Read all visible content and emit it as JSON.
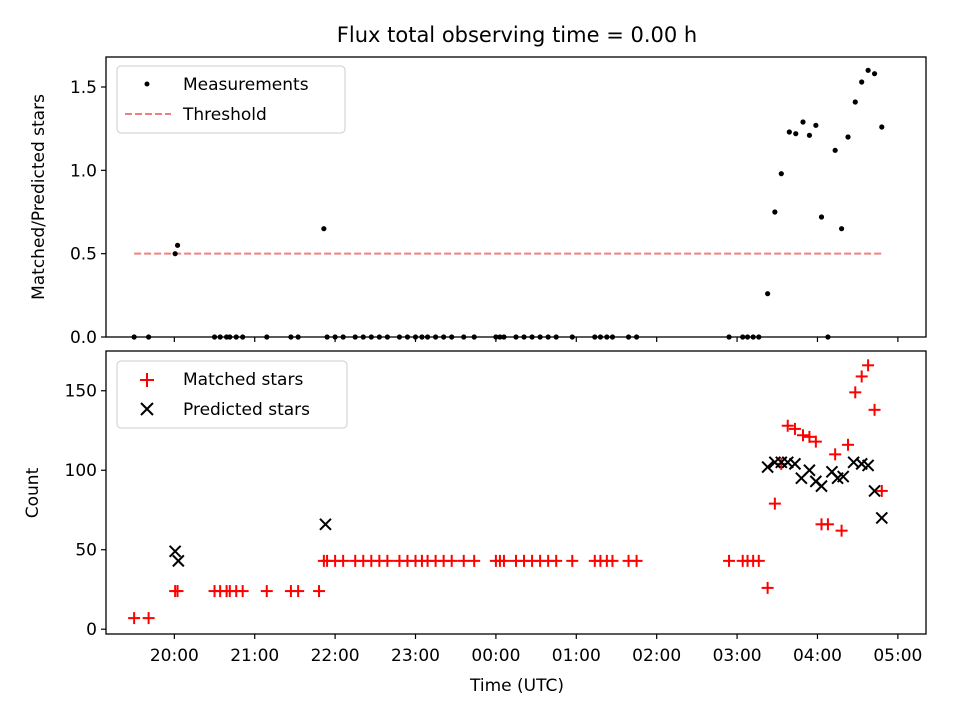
{
  "figure": {
    "title": "Flux total observing time = 0.00 h",
    "xlabel": "Time (UTC)"
  },
  "colors": {
    "measurement": "#000000",
    "threshold": "#f08080",
    "matched": "#ff0000",
    "predicted": "#000000"
  },
  "chart_data": [
    {
      "type": "scatter",
      "name": "ratio-panel",
      "ylabel": "Matched/Predicted stars",
      "xlim": [
        -0.85,
        9.35
      ],
      "ylim": [
        0,
        1.68
      ],
      "yticks": [
        0.0,
        0.5,
        1.0,
        1.5
      ],
      "ytick_labels": [
        "0.0",
        "0.5",
        "1.0",
        "1.5"
      ],
      "legend": {
        "placement": "top-left",
        "entries": [
          "Measurements",
          "Threshold"
        ]
      },
      "threshold": {
        "label": "Threshold",
        "value": 0.5,
        "x": [
          -0.5,
          8.8
        ]
      },
      "series": [
        {
          "name": "Measurements",
          "x": [
            -0.5,
            -0.32,
            0.01,
            0.04,
            0.5,
            0.57,
            0.65,
            0.69,
            0.77,
            0.85,
            1.15,
            1.45,
            1.54,
            1.86,
            1.9,
            2.0,
            2.1,
            2.25,
            2.35,
            2.45,
            2.55,
            2.65,
            2.8,
            2.9,
            3.0,
            3.08,
            3.15,
            3.25,
            3.35,
            3.45,
            3.6,
            3.73,
            4.0,
            4.05,
            4.1,
            4.25,
            4.35,
            4.45,
            4.55,
            4.65,
            4.75,
            4.95,
            5.23,
            5.3,
            5.38,
            5.45,
            5.65,
            5.75,
            6.9,
            7.07,
            7.13,
            7.2,
            7.27,
            7.38,
            7.47,
            7.55,
            7.65,
            7.73,
            7.82,
            7.9,
            7.98,
            8.05,
            8.13,
            8.22,
            8.3,
            8.38,
            8.47,
            8.55,
            8.63,
            8.71,
            8.8
          ],
          "y": [
            0,
            0,
            0.5,
            0.55,
            0,
            0,
            0,
            0,
            0,
            0,
            0,
            0,
            0,
            0.65,
            0,
            0,
            0,
            0,
            0,
            0,
            0,
            0,
            0,
            0,
            0,
            0,
            0,
            0,
            0,
            0,
            0,
            0,
            0,
            0,
            0,
            0,
            0,
            0,
            0,
            0,
            0,
            0,
            0,
            0,
            0,
            0,
            0,
            0,
            0,
            0,
            0,
            0,
            0,
            0.26,
            0.75,
            0.98,
            1.23,
            1.22,
            1.29,
            1.21,
            1.27,
            0.72,
            0,
            1.12,
            0.65,
            1.2,
            1.41,
            1.53,
            1.6,
            1.58,
            1.26
          ]
        }
      ]
    },
    {
      "type": "scatter",
      "name": "count-panel",
      "ylabel": "Count",
      "xlim": [
        -0.85,
        9.35
      ],
      "ylim": [
        -3,
        175
      ],
      "yticks": [
        0,
        50,
        100,
        150
      ],
      "ytick_labels": [
        "0",
        "50",
        "100",
        "150"
      ],
      "xticks": [
        0,
        1,
        2,
        3,
        4,
        5,
        6,
        7,
        8,
        9
      ],
      "xtick_labels": [
        "20:00",
        "21:00",
        "22:00",
        "23:00",
        "00:00",
        "01:00",
        "02:00",
        "03:00",
        "04:00",
        "05:00"
      ],
      "legend": {
        "placement": "top-left",
        "entries": [
          "Matched stars",
          "Predicted stars"
        ]
      },
      "series": [
        {
          "name": "Matched stars",
          "marker": "plus",
          "x": [
            -0.5,
            -0.32,
            0.01,
            0.04,
            0.5,
            0.57,
            0.65,
            0.69,
            0.77,
            0.85,
            1.15,
            1.45,
            1.54,
            1.8,
            1.86,
            1.9,
            2.0,
            2.1,
            2.25,
            2.35,
            2.45,
            2.55,
            2.65,
            2.8,
            2.9,
            3.0,
            3.08,
            3.15,
            3.25,
            3.35,
            3.45,
            3.6,
            3.73,
            4.0,
            4.05,
            4.1,
            4.25,
            4.35,
            4.45,
            4.55,
            4.65,
            4.75,
            4.95,
            5.23,
            5.3,
            5.38,
            5.45,
            5.65,
            5.75,
            6.9,
            7.07,
            7.13,
            7.2,
            7.27,
            7.38,
            7.47,
            7.55,
            7.63,
            7.72,
            7.82,
            7.9,
            7.98,
            8.05,
            8.13,
            8.22,
            8.3,
            8.38,
            8.47,
            8.55,
            8.63,
            8.71,
            8.8
          ],
          "y": [
            7,
            7,
            24,
            24,
            24,
            24,
            24,
            24,
            24,
            24,
            24,
            24,
            24,
            24,
            43,
            43,
            43,
            43,
            43,
            43,
            43,
            43,
            43,
            43,
            43,
            43,
            43,
            43,
            43,
            43,
            43,
            43,
            43,
            43,
            43,
            43,
            43,
            43,
            43,
            43,
            43,
            43,
            43,
            43,
            43,
            43,
            43,
            43,
            43,
            43,
            43,
            43,
            43,
            43,
            26,
            79,
            104,
            128,
            126,
            122,
            121,
            118,
            66,
            66,
            110,
            62,
            116,
            149,
            159,
            166,
            138,
            87
          ]
        },
        {
          "name": "Predicted stars",
          "marker": "x",
          "x": [
            0.01,
            0.05,
            1.88,
            7.38,
            7.47,
            7.55,
            7.63,
            7.72,
            7.8,
            7.9,
            7.98,
            8.05,
            8.18,
            8.25,
            8.32,
            8.45,
            8.55,
            8.63,
            8.71,
            8.8
          ],
          "y": [
            49,
            43,
            66,
            102,
            105,
            105,
            105,
            104,
            95,
            100,
            93,
            90,
            99,
            95,
            96,
            105,
            104,
            103,
            87,
            70
          ]
        }
      ]
    }
  ]
}
